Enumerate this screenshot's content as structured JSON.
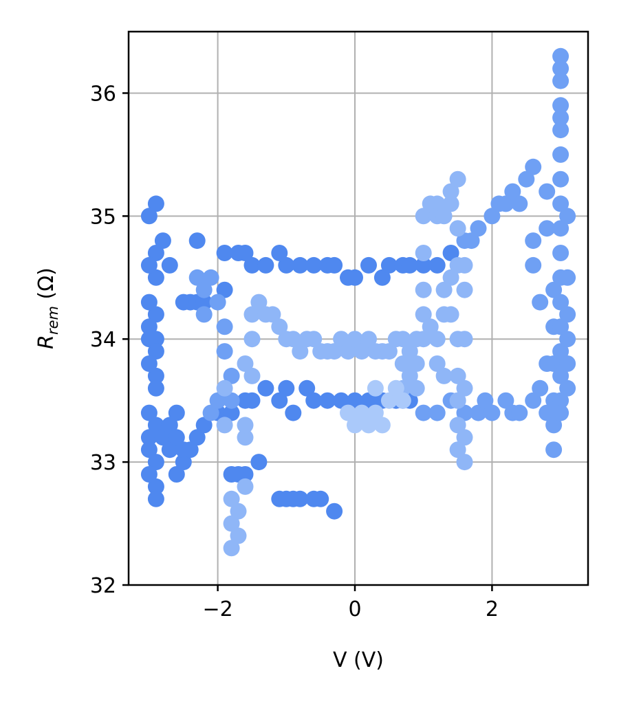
{
  "chart_data": {
    "type": "scatter",
    "title": "",
    "xlabel": "V (V)",
    "ylabel_main": "R",
    "ylabel_sub": "rem",
    "ylabel_unit": " (Ω)",
    "xlim": [
      -3.3,
      3.4
    ],
    "ylim": [
      32,
      36.5
    ],
    "x_ticks": [
      -2,
      0,
      2
    ],
    "x_tick_labels": [
      "−2",
      "0",
      "2"
    ],
    "y_ticks": [
      32,
      33,
      34,
      35,
      36
    ],
    "y_tick_labels": [
      "32",
      "33",
      "34",
      "35",
      "36"
    ],
    "grid": true,
    "colors": {
      "dark": "#4f88ef",
      "medium": "#6fa0f4",
      "light": "#8fb6f7",
      "pale": "#aac9fa"
    },
    "series": [
      {
        "name": "branch-dark",
        "color_key": "dark",
        "points": [
          [
            -3.0,
            35.0
          ],
          [
            -2.9,
            35.1
          ],
          [
            -2.9,
            34.7
          ],
          [
            -2.8,
            34.8
          ],
          [
            -2.9,
            34.5
          ],
          [
            -3.0,
            34.6
          ],
          [
            -2.7,
            34.6
          ],
          [
            -3.0,
            34.3
          ],
          [
            -2.9,
            34.2
          ],
          [
            -3.0,
            34.1
          ],
          [
            -2.9,
            34.0
          ],
          [
            -3.0,
            34.0
          ],
          [
            -2.9,
            33.9
          ],
          [
            -3.0,
            33.8
          ],
          [
            -2.9,
            33.7
          ],
          [
            -2.9,
            33.6
          ],
          [
            -2.5,
            34.3
          ],
          [
            -2.4,
            34.3
          ],
          [
            -2.3,
            34.3
          ],
          [
            -2.2,
            34.3
          ],
          [
            -3.0,
            33.4
          ],
          [
            -2.9,
            33.3
          ],
          [
            -3.0,
            33.2
          ],
          [
            -3.0,
            33.1
          ],
          [
            -2.9,
            33.0
          ],
          [
            -3.0,
            32.9
          ],
          [
            -2.9,
            32.8
          ],
          [
            -2.9,
            32.7
          ],
          [
            -2.8,
            33.2
          ],
          [
            -2.7,
            33.3
          ],
          [
            -2.7,
            33.1
          ],
          [
            -2.6,
            33.2
          ],
          [
            -2.6,
            32.9
          ],
          [
            -2.5,
            33.0
          ],
          [
            -2.6,
            33.4
          ],
          [
            -2.5,
            33.1
          ],
          [
            -2.4,
            33.1
          ],
          [
            -2.3,
            33.2
          ],
          [
            -2.2,
            33.3
          ],
          [
            -2.0,
            33.4
          ],
          [
            -1.8,
            32.9
          ],
          [
            -1.7,
            32.9
          ],
          [
            -1.6,
            32.9
          ],
          [
            -1.4,
            33.0
          ],
          [
            -1.1,
            32.7
          ],
          [
            -1.0,
            32.7
          ],
          [
            -0.9,
            32.7
          ],
          [
            -0.8,
            32.7
          ],
          [
            -0.6,
            32.7
          ],
          [
            -0.5,
            32.7
          ],
          [
            -0.3,
            32.6
          ],
          [
            -1.9,
            34.7
          ],
          [
            -1.7,
            34.7
          ],
          [
            -1.6,
            34.7
          ],
          [
            -1.5,
            34.6
          ],
          [
            -1.3,
            34.6
          ],
          [
            -1.1,
            34.7
          ],
          [
            -1.0,
            34.6
          ],
          [
            -0.8,
            34.6
          ],
          [
            -0.6,
            34.6
          ],
          [
            -0.4,
            34.6
          ],
          [
            -0.3,
            34.6
          ],
          [
            -0.1,
            34.5
          ],
          [
            0.0,
            34.5
          ],
          [
            0.2,
            34.6
          ],
          [
            0.4,
            34.5
          ],
          [
            0.5,
            34.6
          ],
          [
            0.7,
            34.6
          ],
          [
            0.8,
            34.6
          ],
          [
            1.0,
            34.6
          ],
          [
            1.2,
            34.6
          ],
          [
            1.4,
            34.7
          ],
          [
            -1.9,
            34.4
          ],
          [
            -2.3,
            34.8
          ],
          [
            -1.8,
            33.4
          ],
          [
            -1.6,
            33.5
          ],
          [
            -1.5,
            33.5
          ],
          [
            -1.3,
            33.6
          ],
          [
            -1.1,
            33.5
          ],
          [
            -1.0,
            33.6
          ],
          [
            -0.9,
            33.4
          ],
          [
            -0.7,
            33.6
          ],
          [
            -0.6,
            33.5
          ],
          [
            -0.4,
            33.5
          ],
          [
            -0.2,
            33.5
          ],
          [
            0.0,
            33.5
          ],
          [
            0.2,
            33.5
          ],
          [
            0.4,
            33.5
          ],
          [
            0.6,
            33.5
          ],
          [
            0.7,
            33.5
          ],
          [
            0.8,
            33.5
          ]
        ]
      },
      {
        "name": "branch-medium",
        "color_key": "medium",
        "points": [
          [
            1.0,
            33.4
          ],
          [
            1.2,
            33.4
          ],
          [
            1.4,
            33.5
          ],
          [
            1.5,
            33.5
          ],
          [
            1.6,
            33.4
          ],
          [
            1.8,
            33.4
          ],
          [
            1.9,
            33.5
          ],
          [
            2.0,
            33.4
          ],
          [
            2.2,
            33.5
          ],
          [
            2.3,
            33.4
          ],
          [
            2.4,
            33.4
          ],
          [
            2.6,
            33.5
          ],
          [
            2.8,
            33.4
          ],
          [
            1.6,
            34.8
          ],
          [
            1.7,
            34.8
          ],
          [
            1.8,
            34.9
          ],
          [
            2.0,
            35.0
          ],
          [
            2.1,
            35.1
          ],
          [
            2.2,
            35.1
          ],
          [
            2.3,
            35.2
          ],
          [
            2.4,
            35.1
          ],
          [
            2.5,
            35.3
          ],
          [
            2.6,
            35.4
          ],
          [
            2.6,
            34.8
          ],
          [
            2.6,
            34.6
          ],
          [
            2.7,
            34.3
          ],
          [
            2.8,
            34.9
          ],
          [
            2.8,
            35.2
          ],
          [
            2.9,
            34.4
          ],
          [
            2.9,
            34.1
          ],
          [
            2.9,
            33.8
          ],
          [
            2.9,
            33.5
          ],
          [
            2.9,
            33.3
          ],
          [
            2.9,
            33.1
          ],
          [
            3.0,
            36.3
          ],
          [
            3.0,
            36.2
          ],
          [
            3.0,
            36.1
          ],
          [
            3.0,
            35.9
          ],
          [
            3.0,
            35.8
          ],
          [
            3.0,
            35.7
          ],
          [
            3.0,
            35.5
          ],
          [
            3.0,
            35.3
          ],
          [
            3.0,
            35.1
          ],
          [
            3.0,
            34.9
          ],
          [
            3.0,
            34.7
          ],
          [
            3.0,
            34.5
          ],
          [
            3.0,
            34.3
          ],
          [
            3.0,
            34.1
          ],
          [
            3.0,
            33.9
          ],
          [
            3.0,
            33.7
          ],
          [
            3.0,
            33.5
          ],
          [
            3.1,
            33.8
          ],
          [
            3.1,
            33.6
          ],
          [
            3.1,
            34.0
          ],
          [
            3.1,
            34.2
          ],
          [
            3.1,
            34.5
          ],
          [
            3.1,
            35.0
          ],
          [
            3.0,
            33.4
          ],
          [
            2.8,
            33.8
          ],
          [
            2.7,
            33.6
          ],
          [
            -2.3,
            34.5
          ],
          [
            -2.2,
            34.4
          ],
          [
            -2.2,
            34.2
          ],
          [
            -2.1,
            34.5
          ],
          [
            -2.0,
            34.3
          ],
          [
            -1.9,
            34.1
          ],
          [
            -1.9,
            33.9
          ],
          [
            -1.8,
            33.7
          ],
          [
            -1.8,
            33.5
          ],
          [
            -2.1,
            33.4
          ],
          [
            -2.0,
            33.5
          ]
        ]
      },
      {
        "name": "branch-light",
        "color_key": "light",
        "points": [
          [
            -1.9,
            33.6
          ],
          [
            -1.9,
            33.3
          ],
          [
            -1.8,
            32.7
          ],
          [
            -1.8,
            32.5
          ],
          [
            -1.8,
            32.3
          ],
          [
            -1.7,
            32.4
          ],
          [
            -1.7,
            32.6
          ],
          [
            -1.6,
            32.8
          ],
          [
            -1.6,
            33.2
          ],
          [
            -1.6,
            33.3
          ],
          [
            -1.6,
            33.8
          ],
          [
            -1.5,
            33.7
          ],
          [
            -1.5,
            34.0
          ],
          [
            -1.5,
            34.2
          ],
          [
            -1.4,
            34.3
          ],
          [
            -1.3,
            34.2
          ],
          [
            -1.2,
            34.2
          ],
          [
            -1.1,
            34.1
          ],
          [
            -1.0,
            34.0
          ],
          [
            -0.9,
            34.0
          ],
          [
            -0.8,
            33.9
          ],
          [
            -0.7,
            34.0
          ],
          [
            -0.6,
            34.0
          ],
          [
            -0.5,
            33.9
          ],
          [
            -0.4,
            33.9
          ],
          [
            -0.3,
            33.9
          ],
          [
            -0.2,
            34.0
          ],
          [
            -0.1,
            33.9
          ],
          [
            0.0,
            34.0
          ],
          [
            0.1,
            33.9
          ],
          [
            0.2,
            34.0
          ],
          [
            0.3,
            33.9
          ],
          [
            0.4,
            33.9
          ],
          [
            0.5,
            33.9
          ],
          [
            0.6,
            34.0
          ],
          [
            0.7,
            34.0
          ],
          [
            0.8,
            33.9
          ],
          [
            0.9,
            34.0
          ],
          [
            1.0,
            34.2
          ],
          [
            1.1,
            34.1
          ],
          [
            1.2,
            34.0
          ],
          [
            1.3,
            34.2
          ],
          [
            1.4,
            34.2
          ],
          [
            1.5,
            34.0
          ],
          [
            1.6,
            34.0
          ],
          [
            1.5,
            33.7
          ],
          [
            1.6,
            33.6
          ],
          [
            1.5,
            33.3
          ],
          [
            1.5,
            33.1
          ],
          [
            1.6,
            33.0
          ],
          [
            1.6,
            33.2
          ],
          [
            1.5,
            33.5
          ],
          [
            1.4,
            34.5
          ],
          [
            1.5,
            34.6
          ],
          [
            1.6,
            34.4
          ],
          [
            1.6,
            34.6
          ],
          [
            1.3,
            34.4
          ],
          [
            1.0,
            35.0
          ],
          [
            1.1,
            35.1
          ],
          [
            1.2,
            35.1
          ],
          [
            1.2,
            35.0
          ],
          [
            1.3,
            35.0
          ],
          [
            1.4,
            35.1
          ],
          [
            1.4,
            35.2
          ],
          [
            1.5,
            35.3
          ],
          [
            1.5,
            34.9
          ],
          [
            1.0,
            34.7
          ],
          [
            1.0,
            34.4
          ],
          [
            0.7,
            33.8
          ],
          [
            0.7,
            33.6
          ],
          [
            0.8,
            33.7
          ],
          [
            0.9,
            33.6
          ],
          [
            0.9,
            33.8
          ],
          [
            1.0,
            34.0
          ],
          [
            1.2,
            33.8
          ],
          [
            1.3,
            33.7
          ]
        ]
      },
      {
        "name": "branch-pale",
        "color_key": "pale",
        "points": [
          [
            0.0,
            33.3
          ],
          [
            0.1,
            33.4
          ],
          [
            0.2,
            33.3
          ],
          [
            0.3,
            33.4
          ],
          [
            0.3,
            33.6
          ],
          [
            0.4,
            33.3
          ],
          [
            0.5,
            33.5
          ],
          [
            0.6,
            33.6
          ],
          [
            0.7,
            33.5
          ],
          [
            -0.1,
            33.4
          ]
        ]
      }
    ]
  }
}
